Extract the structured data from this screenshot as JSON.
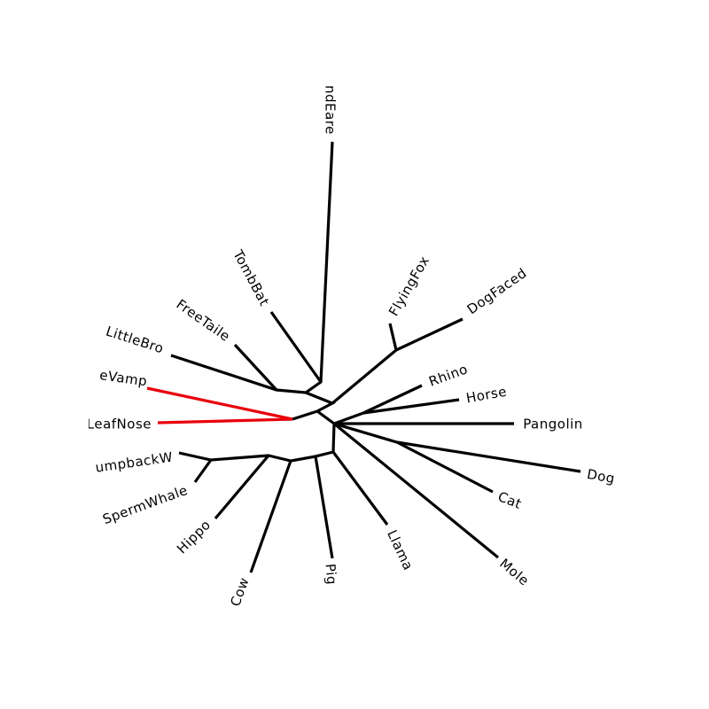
{
  "tree": {
    "leaves": [
      "ndEare",
      "TombBat",
      "FreeTaile",
      "LittleBro",
      "eVamp",
      "LeafNose",
      "umpbackW",
      "SpermWhale",
      "Hippo",
      "Cow",
      "Pig",
      "Llama",
      "Mole",
      "Cat",
      "Dog",
      "Pangolin",
      "Horse",
      "Rhino",
      "FlyingFox",
      "DogFaced"
    ]
  }
}
